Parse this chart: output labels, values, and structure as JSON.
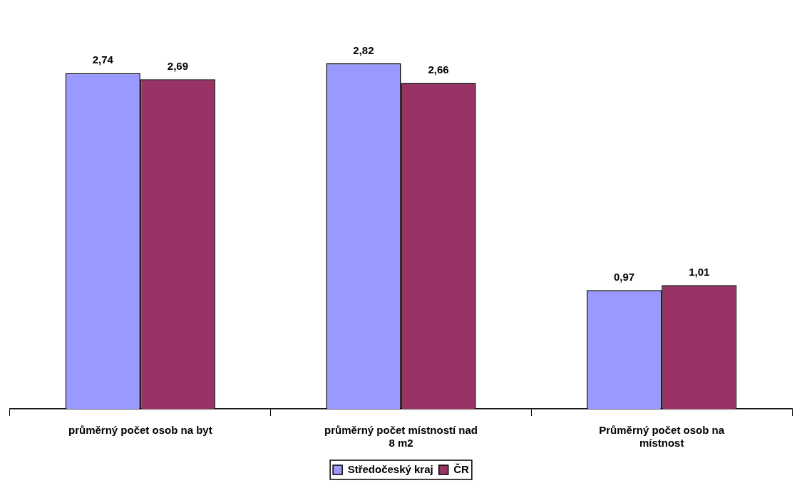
{
  "chart_data": {
    "type": "bar",
    "categories": [
      "průměrný počet osob na byt",
      "průměrný počet místností nad 8 m2",
      "Průměrný počet osob na místnost"
    ],
    "series": [
      {
        "name": "Středočeský kraj",
        "color": "#9999ff",
        "values": [
          2.74,
          2.82,
          0.97
        ],
        "value_labels": [
          "2,74",
          "2,82",
          "0,97"
        ]
      },
      {
        "name": "ČR",
        "color": "#993366",
        "values": [
          2.69,
          2.66,
          1.01
        ],
        "value_labels": [
          "2,69",
          "2,66",
          "1,01"
        ]
      }
    ],
    "legend": "bottom"
  }
}
